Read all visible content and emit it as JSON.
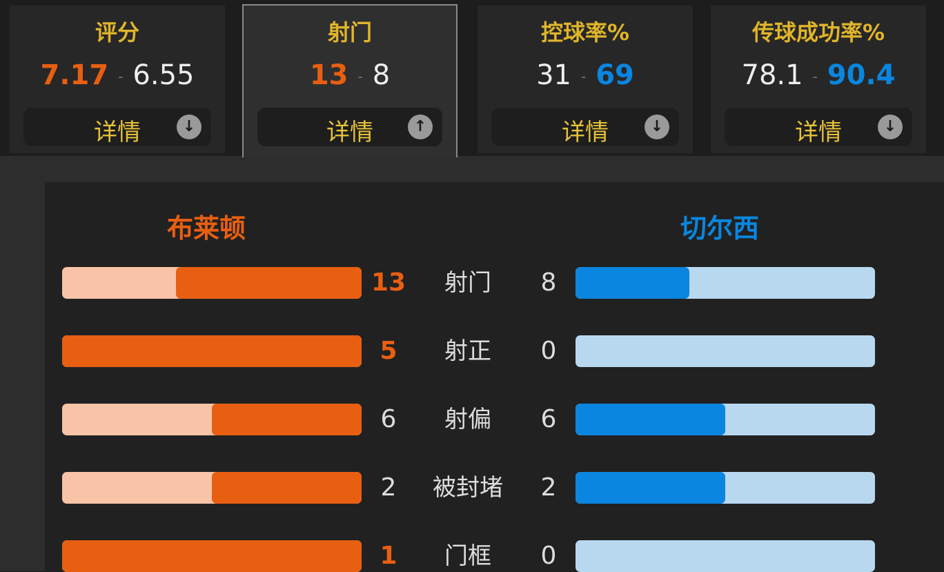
{
  "colors": {
    "home": "#e85f12",
    "home_light": "#f8c4a8",
    "away": "#0a86e0",
    "away_light": "#b8d8ef",
    "title": "#e0b52a"
  },
  "summary_cards": [
    {
      "title": "评分",
      "home": "7.17",
      "away": "6.55",
      "leader": "home",
      "detail_label": "详情",
      "icon": "arrow-down-icon",
      "active": false
    },
    {
      "title": "射门",
      "home": "13",
      "away": "8",
      "leader": "home",
      "detail_label": "详情",
      "icon": "arrow-up-icon",
      "active": true
    },
    {
      "title": "控球率%",
      "home": "31",
      "away": "69",
      "leader": "away",
      "detail_label": "详情",
      "icon": "arrow-down-icon",
      "active": false
    },
    {
      "title": "传球成功率%",
      "home": "78.1",
      "away": "90.4",
      "leader": "away",
      "detail_label": "详情",
      "icon": "arrow-down-icon",
      "active": false
    }
  ],
  "separator": "-",
  "teams": {
    "home": "布莱顿",
    "away": "切尔西"
  },
  "stats": [
    {
      "label": "射门",
      "home": 13,
      "away": 8
    },
    {
      "label": "射正",
      "home": 5,
      "away": 0
    },
    {
      "label": "射偏",
      "home": 6,
      "away": 6
    },
    {
      "label": "被封堵",
      "home": 2,
      "away": 2
    },
    {
      "label": "门框",
      "home": 1,
      "away": 0
    }
  ]
}
